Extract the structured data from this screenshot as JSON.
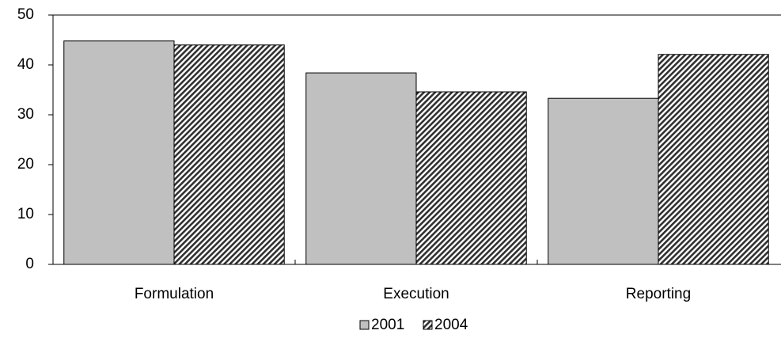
{
  "chart_data": {
    "type": "bar",
    "categories": [
      "Formulation",
      "Execution",
      "Reporting"
    ],
    "series": [
      {
        "name": "2001",
        "color": "#c0c0c0",
        "values": [
          44.8,
          38.4,
          33.3
        ]
      },
      {
        "name": "2004",
        "color": "#303030",
        "pattern": "diagonal-hatch",
        "values": [
          44.0,
          34.6,
          42.1
        ]
      }
    ],
    "ylim": [
      0,
      50
    ],
    "yticks": [
      0,
      10,
      20,
      30,
      40,
      50
    ],
    "grid": false,
    "legend": "bottom"
  }
}
